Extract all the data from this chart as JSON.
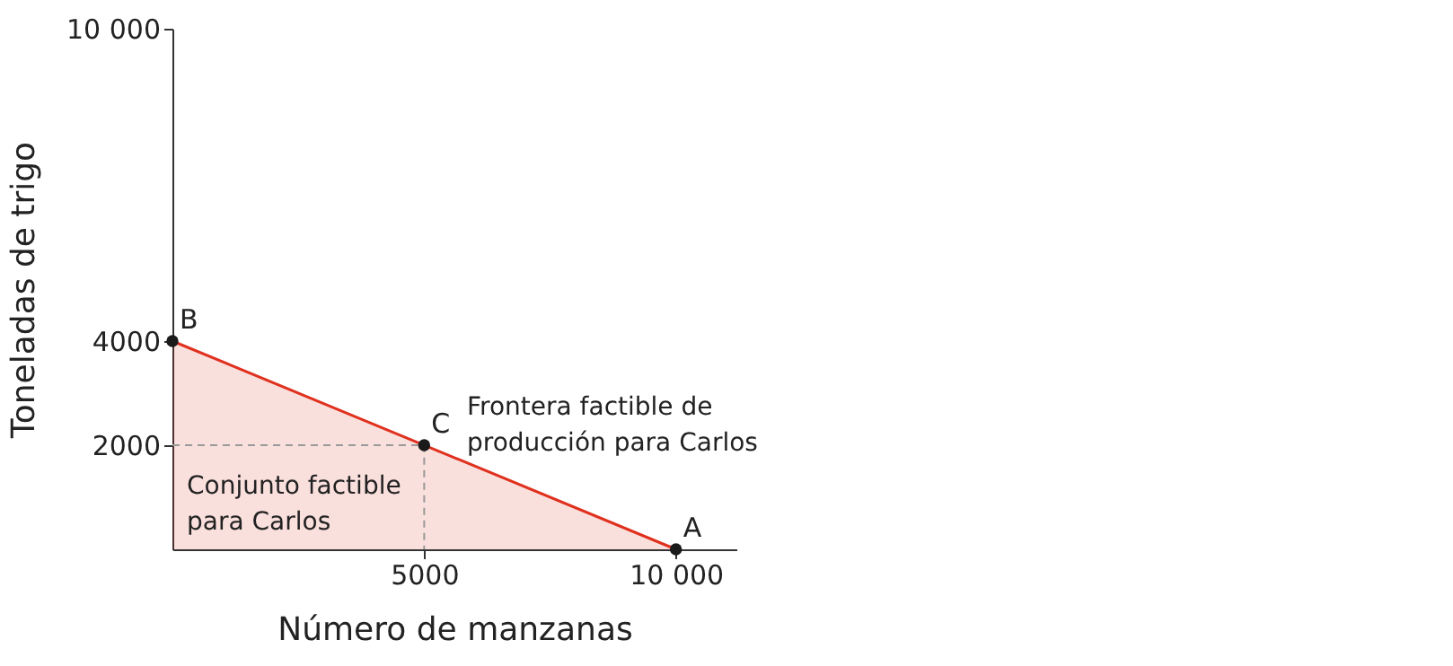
{
  "chart_data": {
    "type": "area",
    "xlabel": "Número de manzanas",
    "ylabel": "Toneladas de trigo",
    "xlim": [
      0,
      11200
    ],
    "ylim": [
      0,
      10000
    ],
    "xticks": [
      5000,
      {
        "value": 10000,
        "label": "10 000"
      }
    ],
    "yticks": [
      2000,
      4000,
      {
        "value": 10000,
        "label": "10 000"
      }
    ],
    "grid": false,
    "series": [
      {
        "color": "#e0301e",
        "x": [
          0,
          10000
        ],
        "values": [
          4000,
          0
        ]
      },
      {
        "type": "line",
        "color": "#999999",
        "x": [
          0,
          5000,
          5000
        ],
        "values": [
          2000,
          2000,
          0
        ],
        "line_style": "dashed"
      },
      {
        "type": "scatter",
        "color": "#1a1a1a",
        "x": [
          0,
          5000,
          10000
        ],
        "values": [
          4000,
          2000,
          0
        ],
        "marker": "circle"
      }
    ],
    "annotations": [
      {
        "text": "A",
        "x": 10000,
        "y": 0
      },
      {
        "text": "B",
        "x": 0,
        "y": 4000
      },
      {
        "text": "C",
        "x": 5000,
        "y": 2000
      },
      "Frontera factible de\nproducción para Carlos",
      "Conjunto factible\npara Carlos"
    ]
  }
}
